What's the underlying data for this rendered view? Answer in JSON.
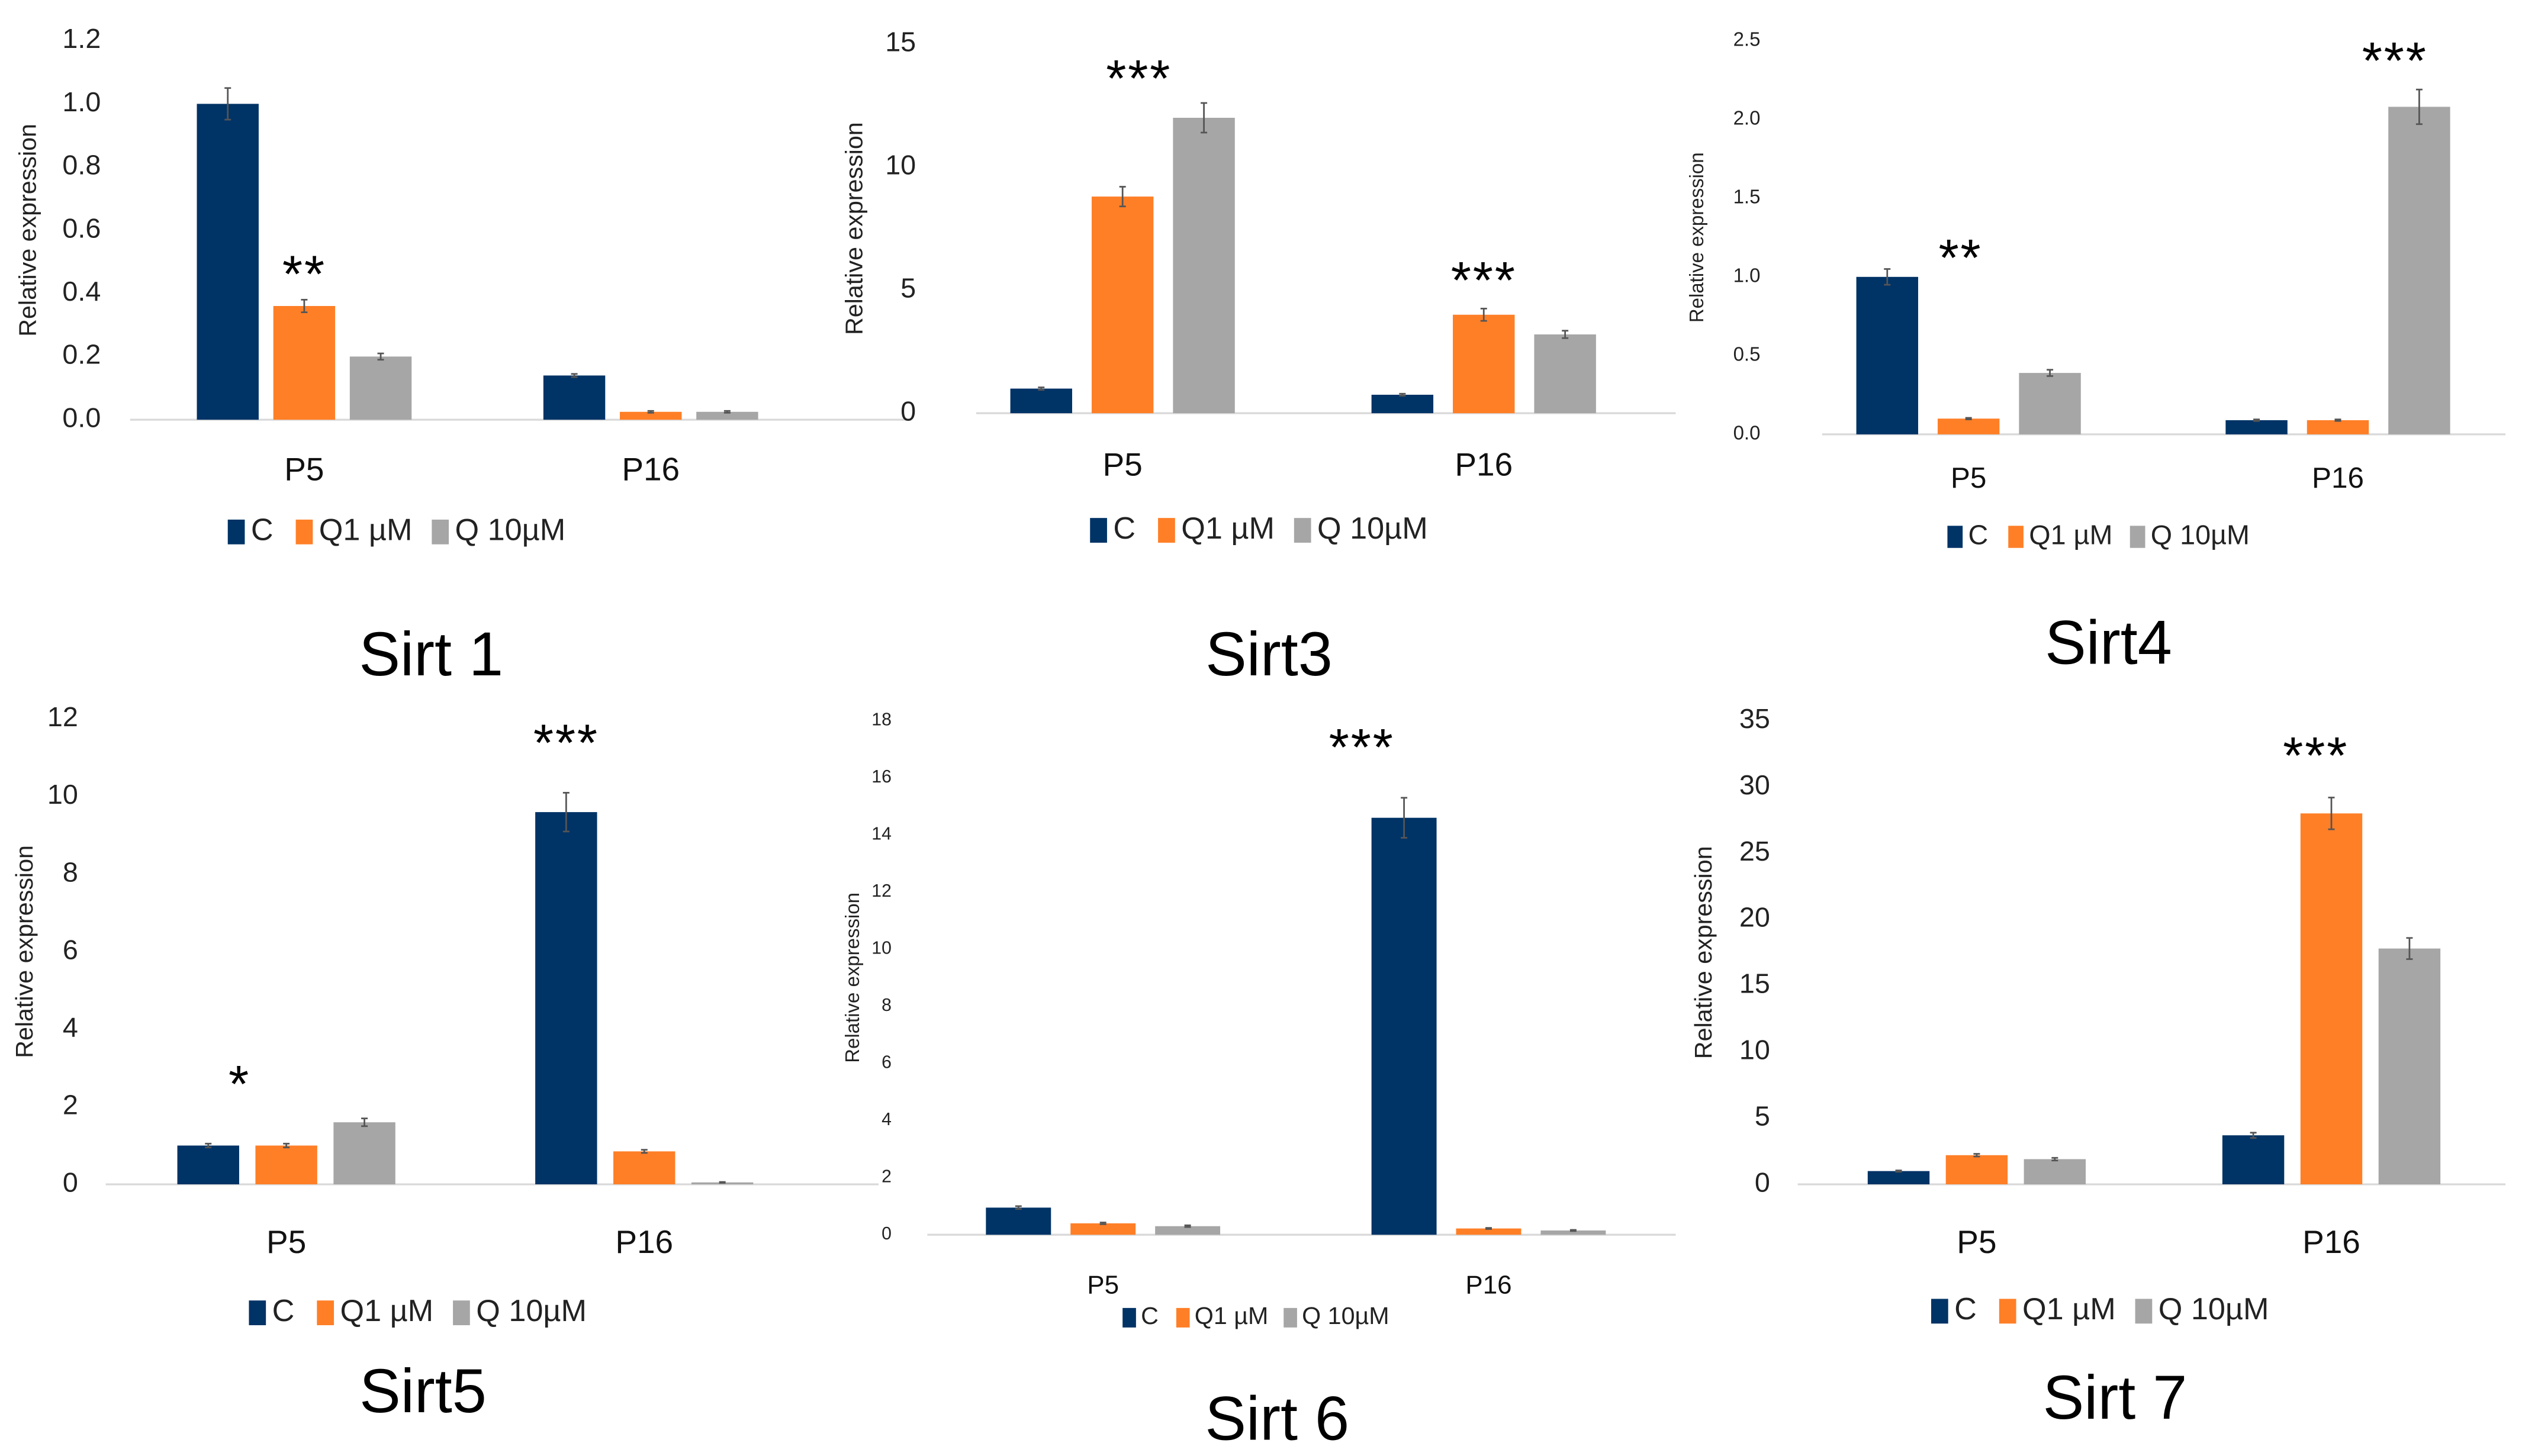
{
  "colors": {
    "C": "#003366",
    "Q1": "#FF7F27",
    "Q10": "#A6A6A6",
    "axis": "#D9D9D9",
    "error": "#555555"
  },
  "chart_data": [
    {
      "type": "bar",
      "title": "Sirt 1",
      "ylabel": "Relative expression",
      "ylim": [
        0,
        1.2
      ],
      "yticks": [
        "0.0",
        "0.2",
        "0.4",
        "0.6",
        "0.8",
        "1.0",
        "1.2"
      ],
      "ytick_values": [
        0,
        0.2,
        0.4,
        0.6,
        0.8,
        1.0,
        1.2
      ],
      "categories": [
        "P5",
        "P16"
      ],
      "series": [
        {
          "name": "C",
          "values": [
            1.0,
            0.14
          ],
          "errors": [
            0.05,
            0.005
          ]
        },
        {
          "name": "Q1 µM",
          "values": [
            0.36,
            0.025
          ],
          "errors": [
            0.02,
            0.003
          ]
        },
        {
          "name": "Q 10µM",
          "values": [
            0.2,
            0.025
          ],
          "errors": [
            0.01,
            0.003
          ]
        }
      ],
      "annotations": [
        {
          "text": "**",
          "group": 0,
          "series": 1,
          "y": 0.5
        }
      ]
    },
    {
      "type": "bar",
      "title": "Sirt3",
      "ylabel": "Relative expression",
      "ylim": [
        0,
        15
      ],
      "yticks": [
        "0",
        "5",
        "10",
        "15"
      ],
      "ytick_values": [
        0,
        5,
        10,
        15
      ],
      "categories": [
        "P5",
        "P16"
      ],
      "series": [
        {
          "name": "C",
          "values": [
            1.0,
            0.75
          ],
          "errors": [
            0.05,
            0.04
          ]
        },
        {
          "name": "Q1 µM",
          "values": [
            8.8,
            4.0
          ],
          "errors": [
            0.4,
            0.25
          ]
        },
        {
          "name": "Q 10µM",
          "values": [
            12.0,
            3.2
          ],
          "errors": [
            0.6,
            0.15
          ]
        }
      ],
      "annotations": [
        {
          "text": "***",
          "group": 0,
          "series": 1.2,
          "y": 14.1
        },
        {
          "text": "***",
          "group": 1,
          "series": 1,
          "y": 5.9
        }
      ]
    },
    {
      "type": "bar",
      "title": "Sirt4",
      "ylabel": "Relative expression",
      "ylim": [
        0,
        2.5
      ],
      "yticks": [
        "0.0",
        "0.5",
        "1.0",
        "1.5",
        "2.0",
        "2.5"
      ],
      "ytick_values": [
        0,
        0.5,
        1,
        1.5,
        2,
        2.5
      ],
      "categories": [
        "P5",
        "P16"
      ],
      "series": [
        {
          "name": "C",
          "values": [
            1.0,
            0.09
          ],
          "errors": [
            0.05,
            0.005
          ]
        },
        {
          "name": "Q1 µM",
          "values": [
            0.1,
            0.09
          ],
          "errors": [
            0.005,
            0.005
          ]
        },
        {
          "name": "Q 10µM",
          "values": [
            0.39,
            2.08
          ],
          "errors": [
            0.02,
            0.11
          ]
        }
      ],
      "annotations": [
        {
          "text": "**",
          "group": 0,
          "series": 0.9,
          "y": 1.2
        },
        {
          "text": "***",
          "group": 1,
          "series": 1.7,
          "y": 2.45
        }
      ]
    },
    {
      "type": "bar",
      "title": "Sirt5",
      "ylabel": "Relative expression",
      "ylim": [
        0,
        12
      ],
      "yticks": [
        "0",
        "2",
        "4",
        "6",
        "8",
        "10",
        "12"
      ],
      "ytick_values": [
        0,
        2,
        4,
        6,
        8,
        10,
        12
      ],
      "categories": [
        "P5",
        "P16"
      ],
      "series": [
        {
          "name": "C",
          "values": [
            1.0,
            9.6
          ],
          "errors": [
            0.05,
            0.5
          ]
        },
        {
          "name": "Q1 µM",
          "values": [
            1.0,
            0.85
          ],
          "errors": [
            0.05,
            0.04
          ]
        },
        {
          "name": "Q 10µM",
          "values": [
            1.6,
            0.05
          ],
          "errors": [
            0.1,
            0.01
          ]
        }
      ],
      "annotations": [
        {
          "text": "*",
          "group": 0,
          "series": 0.4,
          "y": 2.9
        },
        {
          "text": "***",
          "group": 1,
          "series": 0,
          "y": 11.7
        }
      ]
    },
    {
      "type": "bar",
      "title": "Sirt 6",
      "ylabel": "Relative expression",
      "ylim": [
        0,
        18
      ],
      "yticks": [
        "0",
        "2",
        "4",
        "6",
        "8",
        "10",
        "12",
        "14",
        "16",
        "18"
      ],
      "ytick_values": [
        0,
        2,
        4,
        6,
        8,
        10,
        12,
        14,
        16,
        18
      ],
      "categories": [
        "P5",
        "P16"
      ],
      "series": [
        {
          "name": "C",
          "values": [
            0.95,
            14.6
          ],
          "errors": [
            0.05,
            0.7
          ]
        },
        {
          "name": "Q1 µM",
          "values": [
            0.4,
            0.22
          ],
          "errors": [
            0.03,
            0.02
          ]
        },
        {
          "name": "Q 10µM",
          "values": [
            0.3,
            0.15
          ],
          "errors": [
            0.03,
            0.02
          ]
        }
      ],
      "annotations": [
        {
          "text": "***",
          "group": 1,
          "series": -0.5,
          "y": 17.5
        }
      ]
    },
    {
      "type": "bar",
      "title": "Sirt 7",
      "ylabel": "Relative expression",
      "ylim": [
        0,
        35
      ],
      "yticks": [
        "0",
        "5",
        "10",
        "15",
        "20",
        "25",
        "30",
        "35"
      ],
      "ytick_values": [
        0,
        5,
        10,
        15,
        20,
        25,
        30,
        35
      ],
      "categories": [
        "P5",
        "P16"
      ],
      "series": [
        {
          "name": "C",
          "values": [
            1.0,
            3.7
          ],
          "errors": [
            0.05,
            0.2
          ]
        },
        {
          "name": "Q1 µM",
          "values": [
            2.2,
            28.0
          ],
          "errors": [
            0.1,
            1.2
          ]
        },
        {
          "name": "Q 10µM",
          "values": [
            1.9,
            17.8
          ],
          "errors": [
            0.1,
            0.8
          ]
        }
      ],
      "annotations": [
        {
          "text": "***",
          "group": 1,
          "series": 0.8,
          "y": 33.3
        }
      ]
    }
  ]
}
